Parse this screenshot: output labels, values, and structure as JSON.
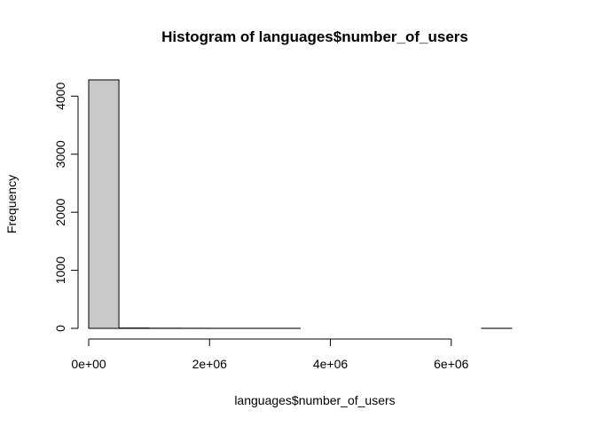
{
  "chart_data": {
    "type": "bar",
    "title": "Histogram of languages$number_of_users",
    "xlabel": "languages$number_of_users",
    "ylabel": "Frequency",
    "bin_edges": [
      0,
      500000,
      1000000,
      1500000,
      2000000,
      2500000,
      3000000,
      3500000,
      4000000,
      4500000,
      5000000,
      5500000,
      6000000,
      6500000,
      7000000,
      7500000
    ],
    "values": [
      4280,
      6,
      3,
      2,
      1,
      1,
      1,
      0,
      0,
      0,
      0,
      0,
      0,
      1,
      0
    ],
    "xlim": [
      0,
      7500000
    ],
    "ylim": [
      0,
      4280
    ],
    "x_ticks": [
      0,
      2000000,
      4000000,
      6000000
    ],
    "x_tick_labels": [
      "0e+00",
      "2e+06",
      "4e+06",
      "6e+06"
    ],
    "y_ticks": [
      0,
      1000,
      2000,
      3000,
      4000
    ],
    "y_tick_labels": [
      "0",
      "1000",
      "2000",
      "3000",
      "4000"
    ],
    "bar_fill": "#c8c8c8",
    "bar_stroke": "#000000"
  }
}
